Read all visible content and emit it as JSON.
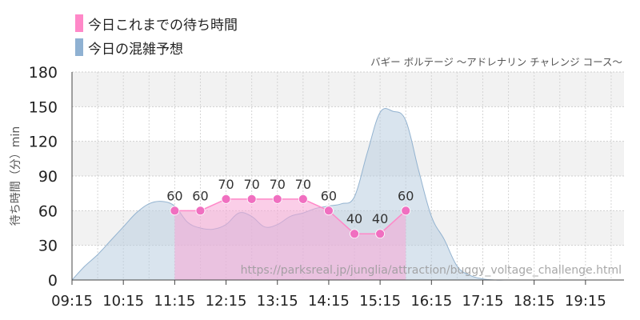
{
  "chart_data": {
    "type": "area",
    "title": "バギー ボルテージ ～アドレナリン チャレンジ コース～",
    "ylabel": "待ち時間（分）min",
    "xlabel": "",
    "ylim": [
      0,
      180
    ],
    "yticks": [
      0,
      30,
      60,
      90,
      120,
      150,
      180
    ],
    "xticks": [
      "09:15",
      "10:15",
      "11:15",
      "12:15",
      "13:15",
      "14:15",
      "15:15",
      "16:15",
      "17:15",
      "18:15",
      "19:15"
    ],
    "xlim": [
      "09:15",
      "20:00"
    ],
    "grid": true,
    "legend_position": "top-left",
    "watermark": "https://parksreal.jp/junglia/attraction/buggy_voltage_challenge.html",
    "series": [
      {
        "name": "今日これまでの待ち時間",
        "color": "#ff88c8",
        "x": [
          "11:15",
          "11:45",
          "12:15",
          "12:45",
          "13:15",
          "13:45",
          "14:15",
          "14:45",
          "15:15",
          "15:45"
        ],
        "values": [
          60,
          60,
          70,
          70,
          70,
          70,
          60,
          40,
          40,
          60
        ]
      },
      {
        "name": "今日の混雑予想",
        "color": "#8fb1d2",
        "x": [
          "09:15",
          "09:30",
          "09:45",
          "10:00",
          "10:15",
          "10:30",
          "10:45",
          "11:00",
          "11:15",
          "11:30",
          "11:45",
          "12:00",
          "12:15",
          "12:30",
          "12:45",
          "13:00",
          "13:15",
          "13:30",
          "13:45",
          "14:00",
          "14:15",
          "14:30",
          "14:45",
          "15:00",
          "15:15",
          "15:30",
          "15:45",
          "16:00",
          "16:15",
          "16:30",
          "16:45",
          "17:00",
          "17:15",
          "17:30",
          "17:45",
          "18:00",
          "18:15",
          "18:30",
          "18:45",
          "19:00",
          "19:15",
          "19:30",
          "19:45",
          "20:00"
        ],
        "values": [
          0,
          12,
          22,
          34,
          46,
          58,
          66,
          68,
          64,
          50,
          45,
          44,
          48,
          58,
          55,
          46,
          48,
          55,
          58,
          62,
          64,
          66,
          72,
          110,
          145,
          146,
          138,
          95,
          55,
          35,
          12,
          4,
          1,
          0,
          0,
          0,
          0,
          0,
          0,
          0,
          0,
          0,
          0,
          0
        ]
      }
    ]
  }
}
